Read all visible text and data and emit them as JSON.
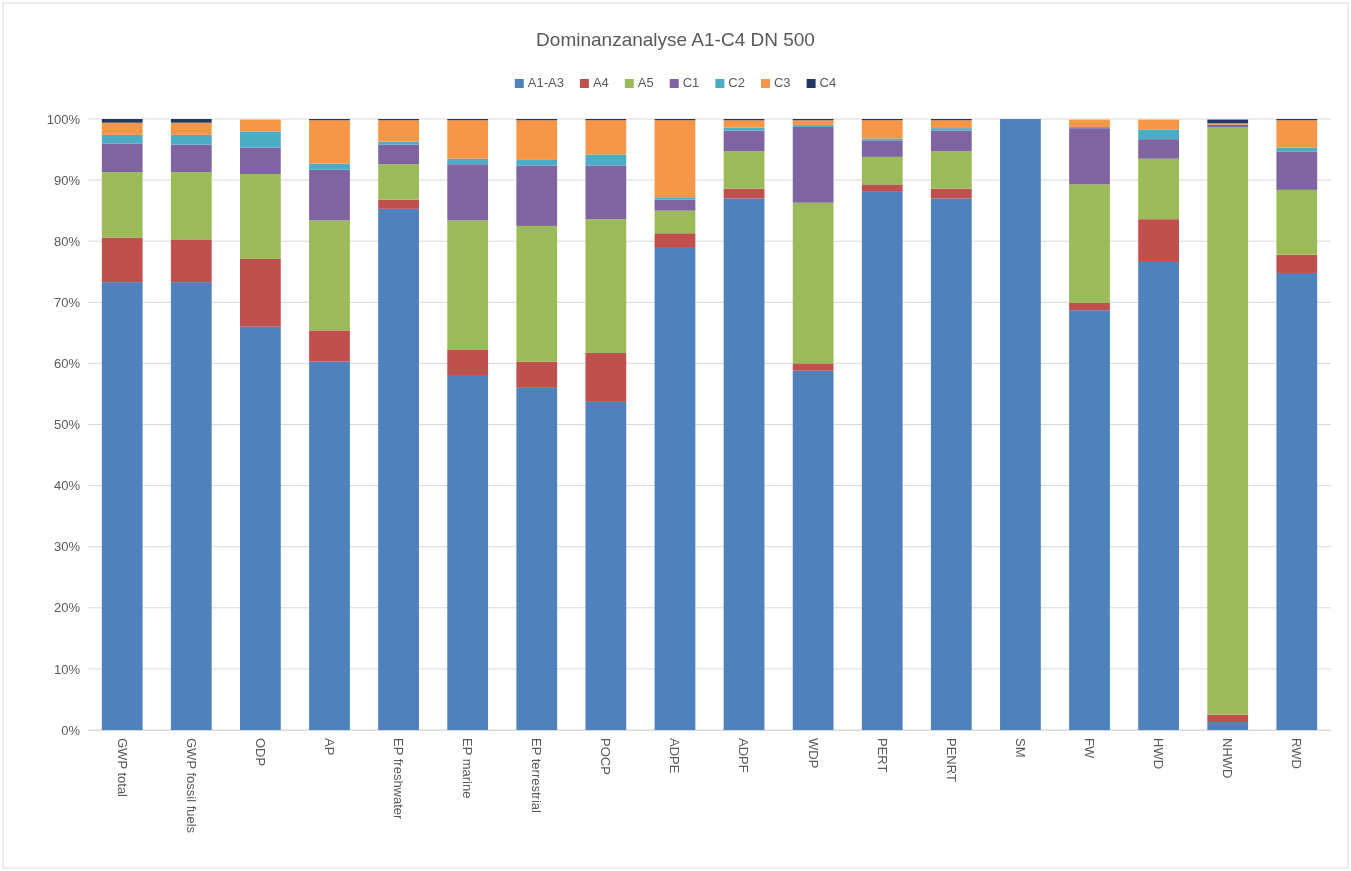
{
  "chart_data": {
    "type": "bar",
    "title": "Dominanzanalyse A1-C4 DN 500",
    "stacked": true,
    "legend": "top",
    "grid": "y",
    "categories": [
      "GWP total",
      "GWP fossil fuels",
      "ODP",
      "AP",
      "EP freshwater",
      "EP marine",
      "EP terrestrial",
      "POCP",
      "ADPE",
      "ADPF",
      "WDP",
      "PERT",
      "PENRT",
      "SM",
      "FW",
      "HWD",
      "NHWD",
      "RWD"
    ],
    "ylim": [
      0,
      100
    ],
    "yticks": [
      {
        "value": 0,
        "label": "0%"
      },
      {
        "value": 10,
        "label": "10%"
      },
      {
        "value": 20,
        "label": "20%"
      },
      {
        "value": 30,
        "label": "30%"
      },
      {
        "value": 40,
        "label": "40%"
      },
      {
        "value": 50,
        "label": "50%"
      },
      {
        "value": 60,
        "label": "60%"
      },
      {
        "value": 70,
        "label": "70%"
      },
      {
        "value": 80,
        "label": "80%"
      },
      {
        "value": 90,
        "label": "90%"
      },
      {
        "value": 100,
        "label": "100%"
      }
    ],
    "series": [
      {
        "name": "A1-A3",
        "color": "#4f81bd",
        "values": [
          73.3,
          73.3,
          66.0,
          60.3,
          85.3,
          58.1,
          56.0,
          53.7,
          78.9,
          87.0,
          58.8,
          88.2,
          87.0,
          100,
          68.7,
          76.6,
          1.3,
          74.8
        ]
      },
      {
        "name": "A4",
        "color": "#c0504d",
        "values": [
          7.3,
          7.0,
          11.1,
          5.1,
          1.5,
          4.1,
          4.3,
          8.0,
          2.4,
          1.6,
          1.2,
          1.1,
          1.6,
          0,
          1.2,
          7.0,
          1.2,
          3.0
        ]
      },
      {
        "name": "A5",
        "color": "#9bbb59",
        "values": [
          10.7,
          11.0,
          13.9,
          18.0,
          5.8,
          21.2,
          22.2,
          21.9,
          3.7,
          6.1,
          26.3,
          4.5,
          6.1,
          0,
          19.4,
          9.9,
          96.2,
          10.6
        ]
      },
      {
        "name": "C1",
        "color": "#8064a2",
        "values": [
          4.7,
          4.5,
          4.3,
          8.3,
          3.2,
          9.2,
          9.9,
          8.8,
          1.8,
          3.4,
          12.4,
          2.7,
          3.4,
          0,
          9.2,
          3.2,
          0.4,
          6.3
        ]
      },
      {
        "name": "C2",
        "color": "#4bacc6",
        "values": [
          1.4,
          1.6,
          2.6,
          1.0,
          0.5,
          0.9,
          0.9,
          1.8,
          0.4,
          0.5,
          0.3,
          0.3,
          0.4,
          0,
          0.2,
          1.6,
          null,
          0.6
        ]
      },
      {
        "name": "C3",
        "color": "#f79646",
        "values": [
          2.0,
          2.0,
          2.0,
          7.1,
          3.5,
          6.3,
          6.5,
          5.6,
          12.6,
          1.2,
          0.8,
          3.0,
          1.3,
          0,
          1.2,
          1.6,
          0.2,
          4.5
        ]
      },
      {
        "name": "C4",
        "color": "#1f3864",
        "values": [
          0.6,
          0.6,
          null,
          0.2,
          0.2,
          0.2,
          0.2,
          0.2,
          0.2,
          0.2,
          0.2,
          0.2,
          0.2,
          0,
          null,
          null,
          0.6,
          0.2
        ]
      }
    ]
  }
}
